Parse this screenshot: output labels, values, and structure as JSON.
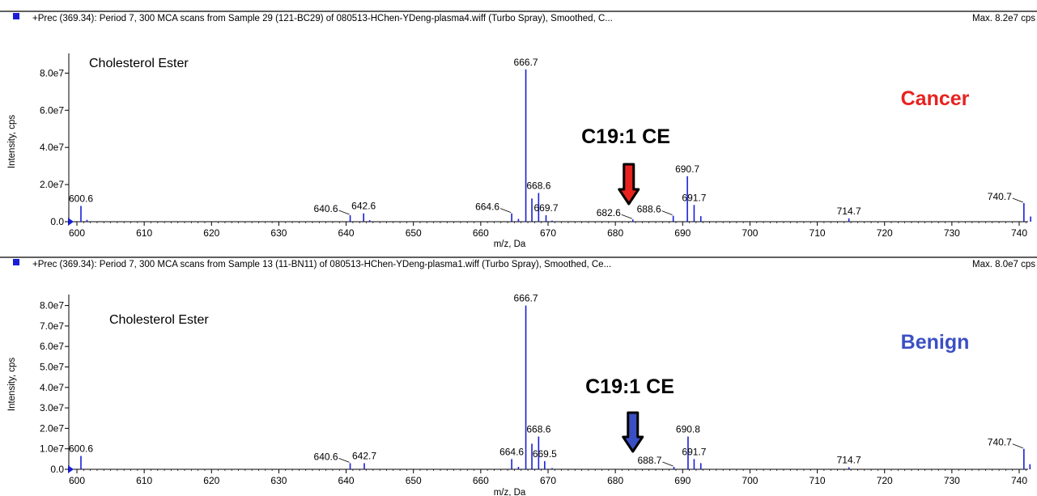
{
  "chart_data": [
    {
      "type": "bar",
      "header": "+Prec (369.34): Period 7, 300 MCA scans from Sample 29 (121-BC29) of 080513-HChen-YDeng-plasma4.wiff (Turbo Spray), Smoothed, C...",
      "max_label": "Max. 8.2e7 cps",
      "inner_title": "Cholesterol Ester",
      "condition_label": "Cancer",
      "condition_color": "#e8221f",
      "callout": "C19:1 CE",
      "arrow_color": "#e8221f",
      "arrow_x": 682,
      "xlabel": "m/z, Da",
      "ylabel": "Intensity, cps",
      "xlim": [
        598,
        742.5
      ],
      "ylim": [
        0,
        88000000.0
      ],
      "xticks": [
        600,
        610,
        620,
        630,
        640,
        650,
        660,
        670,
        680,
        690,
        700,
        710,
        720,
        730,
        740
      ],
      "yticks": [
        {
          "v": 0,
          "label": "0.0"
        },
        {
          "v": 20000000.0,
          "label": "2.0e7"
        },
        {
          "v": 40000000.0,
          "label": "4.0e7"
        },
        {
          "v": 60000000.0,
          "label": "6.0e7"
        },
        {
          "v": 80000000.0,
          "label": "8.0e7"
        }
      ],
      "peaks": [
        {
          "x": 600.6,
          "y": 8500000.0,
          "label": "600.6"
        },
        {
          "x": 601.5,
          "y": 1000000.0
        },
        {
          "x": 640.6,
          "y": 3500000.0,
          "label": "640.6",
          "leader": true
        },
        {
          "x": 642.6,
          "y": 4500000.0,
          "label": "642.6"
        },
        {
          "x": 643.5,
          "y": 800000.0
        },
        {
          "x": 664.6,
          "y": 4500000.0,
          "label": "664.6",
          "leader": true
        },
        {
          "x": 665.6,
          "y": 1500000.0
        },
        {
          "x": 666.7,
          "y": 82000000.0,
          "label": "666.7"
        },
        {
          "x": 667.6,
          "y": 12500000.0
        },
        {
          "x": 668.6,
          "y": 15500000.0,
          "label": "668.6"
        },
        {
          "x": 669.7,
          "y": 3500000.0,
          "label": "669.7"
        },
        {
          "x": 670.6,
          "y": 600000.0
        },
        {
          "x": 682.6,
          "y": 1200000.0,
          "label": "682.6",
          "leader": true
        },
        {
          "x": 688.6,
          "y": 3200000.0,
          "label": "688.6",
          "leader": true
        },
        {
          "x": 690.7,
          "y": 24500000.0,
          "label": "690.7"
        },
        {
          "x": 691.7,
          "y": 9000000.0,
          "label": "691.7"
        },
        {
          "x": 692.7,
          "y": 3000000.0
        },
        {
          "x": 714.7,
          "y": 1800000.0,
          "label": "714.7"
        },
        {
          "x": 740.7,
          "y": 10000000.0,
          "label": "740.7",
          "leader": true
        },
        {
          "x": 741.7,
          "y": 2800000.0
        }
      ]
    },
    {
      "type": "bar",
      "header": "+Prec (369.34): Period 7, 300 MCA scans from Sample 13 (11-BN11) of 080513-HChen-YDeng-plasma1.wiff (Turbo Spray), Smoothed, Ce...",
      "max_label": "Max. 8.0e7 cps",
      "inner_title": "Cholesterol Ester",
      "condition_label": "Benign",
      "condition_color": "#3b4fc4",
      "callout": "C19:1 CE",
      "arrow_color": "#3b4fc4",
      "arrow_x": 682.6,
      "xlabel": "m/z, Da",
      "ylabel": "Intensity, cps",
      "xlim": [
        598,
        742.5
      ],
      "ylim": [
        0,
        83000000.0
      ],
      "xticks": [
        600,
        610,
        620,
        630,
        640,
        650,
        660,
        670,
        680,
        690,
        700,
        710,
        720,
        730,
        740
      ],
      "yticks": [
        {
          "v": 0,
          "label": "0.0"
        },
        {
          "v": 10000000.0,
          "label": "1.0e7"
        },
        {
          "v": 20000000.0,
          "label": "2.0e7"
        },
        {
          "v": 30000000.0,
          "label": "3.0e7"
        },
        {
          "v": 40000000.0,
          "label": "4.0e7"
        },
        {
          "v": 50000000.0,
          "label": "5.0e7"
        },
        {
          "v": 60000000.0,
          "label": "6.0e7"
        },
        {
          "v": 70000000.0,
          "label": "7.0e7"
        },
        {
          "v": 80000000.0,
          "label": "8.0e7"
        }
      ],
      "peaks": [
        {
          "x": 600.6,
          "y": 6500000.0,
          "label": "600.6"
        },
        {
          "x": 640.6,
          "y": 3000000.0,
          "label": "640.6",
          "leader": true
        },
        {
          "x": 642.7,
          "y": 3000000.0,
          "label": "642.7"
        },
        {
          "x": 664.6,
          "y": 5000000.0,
          "label": "664.6"
        },
        {
          "x": 665.6,
          "y": 1200000.0
        },
        {
          "x": 666.7,
          "y": 80000000.0,
          "label": "666.7"
        },
        {
          "x": 667.6,
          "y": 12500000.0
        },
        {
          "x": 668.6,
          "y": 16000000.0,
          "label": "668.6"
        },
        {
          "x": 669.5,
          "y": 4000000.0,
          "label": "669.5"
        },
        {
          "x": 670.6,
          "y": 600000.0
        },
        {
          "x": 688.7,
          "y": 1200000.0,
          "label": "688.7",
          "leader": true
        },
        {
          "x": 690.8,
          "y": 16000000.0,
          "label": "690.8"
        },
        {
          "x": 691.7,
          "y": 5000000.0,
          "label": "691.7"
        },
        {
          "x": 692.7,
          "y": 3000000.0
        },
        {
          "x": 714.7,
          "y": 1000000.0,
          "label": "714.7"
        },
        {
          "x": 740.7,
          "y": 10000000.0,
          "label": "740.7",
          "leader": true
        },
        {
          "x": 741.6,
          "y": 2500000.0
        }
      ]
    }
  ]
}
